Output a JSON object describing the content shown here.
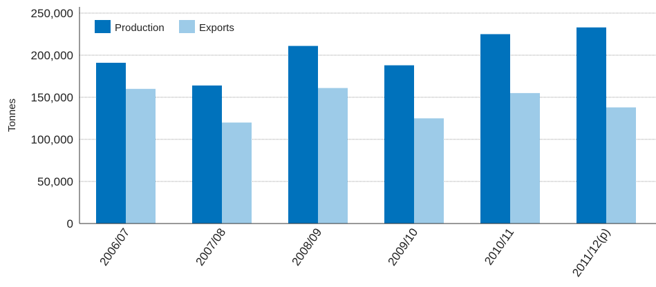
{
  "chart_data": {
    "type": "bar",
    "title": "",
    "xlabel": "",
    "ylabel": "Tonnes",
    "ylim": [
      0,
      250000
    ],
    "yticks": [
      0,
      50000,
      100000,
      150000,
      200000,
      250000
    ],
    "ytick_labels": [
      "0",
      "50,000",
      "100,000",
      "150,000",
      "200,000",
      "250,000"
    ],
    "categories": [
      "2006/07",
      "2007/08",
      "2008/09",
      "2009/10",
      "2010/11",
      "2011/12(p)"
    ],
    "series": [
      {
        "name": "Production",
        "color": "#0072bc",
        "values": [
          191000,
          164000,
          211000,
          188000,
          225000,
          233000
        ]
      },
      {
        "name": "Exports",
        "color": "#9dcbe8",
        "values": [
          160000,
          120000,
          161000,
          125000,
          155000,
          138000
        ]
      }
    ],
    "grid": true,
    "legend_position": "top-left"
  }
}
